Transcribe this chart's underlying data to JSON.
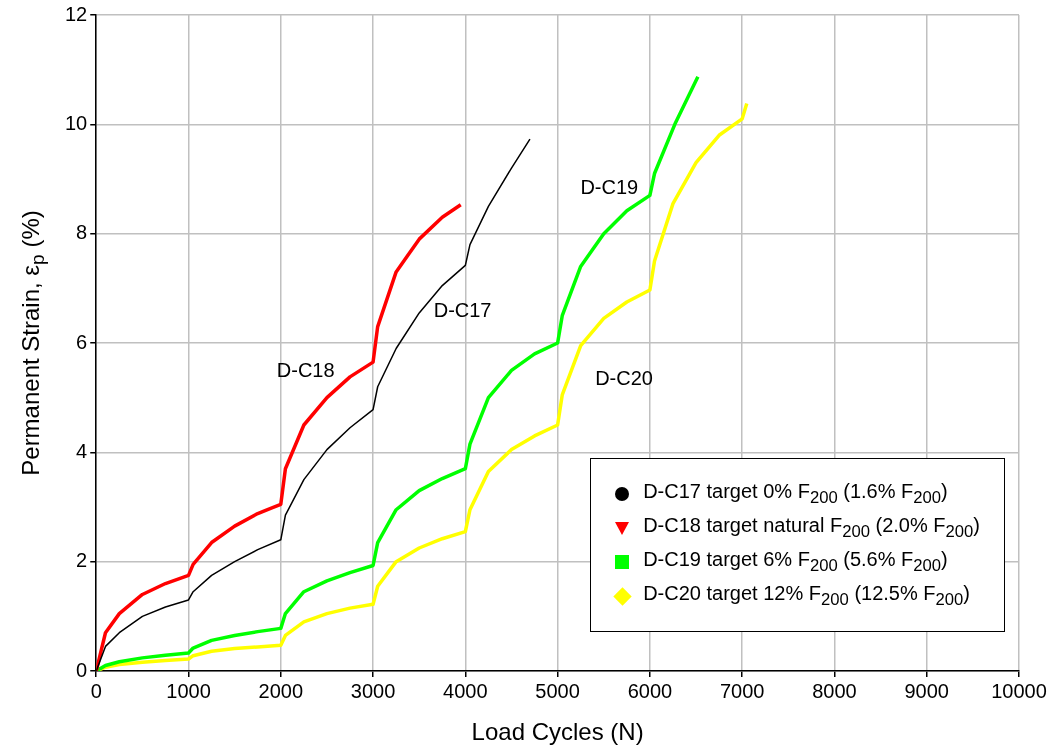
{
  "chart_data": {
    "type": "line",
    "xlabel": "Load Cycles (N)",
    "ylabel": "Permanent Strain, ε$_{p}$ (%)",
    "xlim": [
      0,
      10000
    ],
    "xticks": [
      0,
      1000,
      2000,
      3000,
      4000,
      5000,
      6000,
      7000,
      8000,
      9000,
      10000
    ],
    "ylim": [
      0,
      12
    ],
    "yticks": [
      0,
      2,
      4,
      6,
      8,
      10,
      12
    ],
    "grid": true,
    "legend": "bottom right",
    "line_style": "solid",
    "series": [
      {
        "name": "D-C17 target 0% F$_{200}$ (1.6% F$_{200}$)",
        "color": "#000000",
        "x": [
          0,
          100,
          250,
          500,
          750,
          1000,
          1050,
          1250,
          1500,
          1750,
          2000,
          2050,
          2250,
          2500,
          2750,
          3000,
          3050,
          3250,
          3500,
          3750,
          4000,
          4050,
          4250,
          4500,
          4700
        ],
        "values": [
          0,
          0.45,
          0.7,
          1.0,
          1.17,
          1.3,
          1.45,
          1.75,
          2.0,
          2.22,
          2.4,
          2.85,
          3.5,
          4.05,
          4.45,
          4.78,
          5.2,
          5.9,
          6.55,
          7.05,
          7.42,
          7.8,
          8.5,
          9.2,
          9.73
        ]
      },
      {
        "name": "D-C18 target natural F$_{200}$ (2.0% F$_{200}$)",
        "color": "#ff0000",
        "x": [
          0,
          100,
          250,
          500,
          750,
          1000,
          1050,
          1250,
          1500,
          1750,
          2000,
          2050,
          2250,
          2500,
          2750,
          3000,
          3050,
          3250,
          3500,
          3750,
          3950
        ],
        "values": [
          0,
          0.7,
          1.05,
          1.4,
          1.6,
          1.75,
          1.95,
          2.35,
          2.65,
          2.88,
          3.05,
          3.7,
          4.5,
          5.0,
          5.38,
          5.65,
          6.3,
          7.3,
          7.9,
          8.3,
          8.53
        ]
      },
      {
        "name": "D-C19 target 6% F$_{200}$ (5.6% F$_{200}$)",
        "color": "#00ff00",
        "x": [
          0,
          100,
          250,
          500,
          750,
          1000,
          1050,
          1250,
          1500,
          1750,
          2000,
          2050,
          2250,
          2500,
          2750,
          3000,
          3050,
          3250,
          3500,
          3750,
          4000,
          4050,
          4250,
          4500,
          4750,
          5000,
          5050,
          5250,
          5500,
          5750,
          6000,
          6050,
          6270,
          6520
        ],
        "values": [
          0,
          0.1,
          0.17,
          0.24,
          0.29,
          0.33,
          0.42,
          0.56,
          0.65,
          0.72,
          0.78,
          1.05,
          1.45,
          1.65,
          1.8,
          1.93,
          2.35,
          2.95,
          3.3,
          3.52,
          3.7,
          4.15,
          5.0,
          5.5,
          5.8,
          6.0,
          6.5,
          7.4,
          8.0,
          8.42,
          8.7,
          9.1,
          10.0,
          10.87
        ]
      },
      {
        "name": "D-C20 target 12% F$_{200}$ (12.5% F$_{200}$)",
        "color": "#ffff00",
        "x": [
          0,
          100,
          250,
          500,
          750,
          1000,
          1050,
          1250,
          1500,
          1750,
          2000,
          2050,
          2250,
          2500,
          2750,
          3000,
          3050,
          3250,
          3500,
          3750,
          4000,
          4050,
          4250,
          4500,
          4750,
          5000,
          5050,
          5250,
          5500,
          5750,
          6000,
          6050,
          6250,
          6500,
          6750,
          7000,
          7050
        ],
        "values": [
          0,
          0.07,
          0.12,
          0.16,
          0.19,
          0.22,
          0.28,
          0.36,
          0.41,
          0.44,
          0.47,
          0.65,
          0.9,
          1.05,
          1.15,
          1.22,
          1.55,
          2.0,
          2.25,
          2.42,
          2.55,
          2.95,
          3.65,
          4.05,
          4.3,
          4.5,
          5.05,
          5.95,
          6.45,
          6.75,
          6.97,
          7.5,
          8.55,
          9.3,
          9.8,
          10.1,
          10.38
        ]
      }
    ],
    "annotations": [
      "D-C18",
      "D-C17",
      "D-C19",
      "D-C20"
    ]
  }
}
